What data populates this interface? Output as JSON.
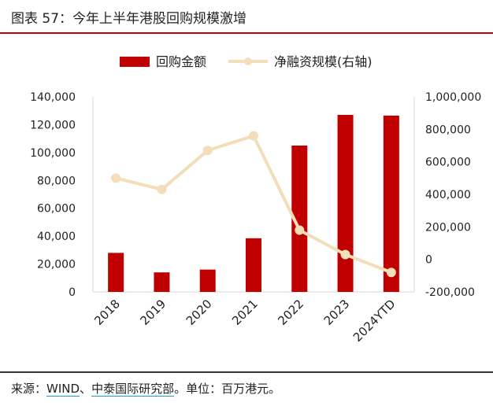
{
  "header": {
    "title": "图表 57：今年上半年港股回购规模激增"
  },
  "footer": {
    "prefix": "来源：",
    "source1": "WIND",
    "sep": "、",
    "source2": "中泰国际研究部",
    "suffix": "。单位：百万港元。"
  },
  "colors": {
    "bar": "#c00000",
    "line": "#f2deb8",
    "accent": "#c00000"
  },
  "chart_data": {
    "type": "bar+line",
    "categories": [
      "2018",
      "2019",
      "2020",
      "2021",
      "2022",
      "2023",
      "2024YTD"
    ],
    "series": [
      {
        "name": "回购金额",
        "type": "bar",
        "axis": "left",
        "values": [
          28000,
          14000,
          16000,
          38500,
          105000,
          127000,
          126500
        ]
      },
      {
        "name": "净融资规模(右轴)",
        "type": "line",
        "axis": "right",
        "values": [
          500000,
          430000,
          670000,
          760000,
          180000,
          30000,
          -80000
        ]
      }
    ],
    "left_axis": {
      "min": 0,
      "max": 140000,
      "ticks": [
        "0",
        "20,000",
        "40,000",
        "60,000",
        "80,000",
        "100,000",
        "120,000",
        "140,000"
      ]
    },
    "right_axis": {
      "min": -200000,
      "max": 1000000,
      "ticks": [
        "-200,000",
        "0",
        "200,000",
        "400,000",
        "600,000",
        "800,000",
        "1,000,000"
      ]
    },
    "legend_position": "top"
  }
}
